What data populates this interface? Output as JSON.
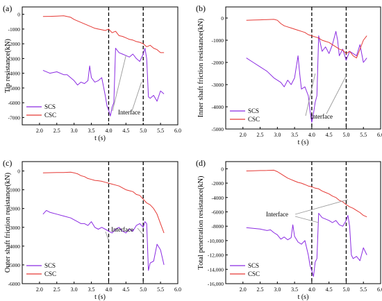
{
  "chart_data": [
    {
      "type": "line",
      "panel_label": "(a)",
      "ylabel": "Tip resistance(kN)",
      "xlabel": "t  (s)",
      "xlim": [
        1.5,
        6.0
      ],
      "ylim": [
        -7500,
        500
      ],
      "xticks": [
        "2.0",
        "2.5",
        "3.0",
        "3.5",
        "4.0",
        "4.5",
        "5.0",
        "5.5",
        "6.0"
      ],
      "yticks": [
        "0",
        "-1000",
        "-2000",
        "-3000",
        "-4000",
        "-5000",
        "-6000",
        "-7000"
      ],
      "xtick_values": [
        2.0,
        2.5,
        3.0,
        3.5,
        4.0,
        4.5,
        5.0,
        5.5,
        6.0
      ],
      "ytick_values": [
        0,
        -1000,
        -2000,
        -3000,
        -4000,
        -5000,
        -6000,
        -7000
      ],
      "vlines": [
        4.0,
        5.0
      ],
      "legend_position": "bottom-left",
      "annotation": "Interface",
      "series": [
        {
          "name": "SCS",
          "color": "#8B2BE2",
          "x": [
            2.1,
            2.3,
            2.5,
            2.7,
            2.8,
            2.9,
            3.0,
            3.1,
            3.2,
            3.3,
            3.4,
            3.45,
            3.5,
            3.6,
            3.7,
            3.8,
            3.9,
            3.95,
            4.0,
            4.05,
            4.1,
            4.15,
            4.2,
            4.3,
            4.4,
            4.5,
            4.6,
            4.7,
            4.8,
            4.9,
            5.0,
            5.05,
            5.1,
            5.15,
            5.2,
            5.3,
            5.4,
            5.5,
            5.6
          ],
          "y": [
            -3800,
            -4000,
            -3900,
            -4100,
            -4100,
            -4300,
            -4500,
            -4800,
            -4600,
            -4700,
            -4500,
            -3500,
            -4300,
            -4600,
            -4500,
            -4300,
            -5500,
            -6200,
            -6500,
            -6900,
            -6300,
            -6000,
            -2300,
            -2600,
            -2700,
            -2800,
            -2900,
            -2700,
            -3000,
            -3200,
            -2700,
            -2300,
            -3000,
            -5600,
            -5700,
            -5500,
            -5900,
            -5200,
            -5400
          ]
        },
        {
          "name": "CSC",
          "color": "#E53935",
          "x": [
            2.1,
            2.3,
            2.5,
            2.7,
            2.9,
            3.0,
            3.1,
            3.2,
            3.3,
            3.4,
            3.5,
            3.6,
            3.7,
            3.8,
            3.9,
            4.0,
            4.1,
            4.2,
            4.3,
            4.4,
            4.5,
            4.6,
            4.7,
            4.8,
            4.9,
            5.0,
            5.1,
            5.2,
            5.3,
            5.4,
            5.5,
            5.6
          ],
          "y": [
            -150,
            -140,
            -120,
            -100,
            -200,
            -350,
            -450,
            -550,
            -650,
            -750,
            -850,
            -950,
            -1000,
            -1050,
            -1100,
            -1000,
            -1250,
            -1150,
            -1450,
            -1500,
            -1600,
            -1700,
            -1750,
            -1850,
            -1900,
            -2000,
            -2200,
            -2100,
            -2300,
            -2400,
            -2600,
            -2600
          ]
        }
      ]
    },
    {
      "type": "line",
      "panel_label": "(b)",
      "ylabel": "Inner shaft friction resistance(kN)",
      "xlabel": "t  (s)",
      "xlim": [
        1.5,
        6.0
      ],
      "ylim": [
        -5000,
        500
      ],
      "xticks": [
        "2.0",
        "2.5",
        "3.0",
        "3.5",
        "4.0",
        "4.5",
        "5.0",
        "5.5",
        "6.0"
      ],
      "yticks": [
        "0",
        "-1000",
        "-2000",
        "-3000",
        "-4000",
        "-5000"
      ],
      "xtick_values": [
        2.0,
        2.5,
        3.0,
        3.5,
        4.0,
        4.5,
        5.0,
        5.5,
        6.0
      ],
      "ytick_values": [
        0,
        -1000,
        -2000,
        -3000,
        -4000,
        -5000
      ],
      "vlines": [
        4.0,
        5.0
      ],
      "legend_position": "bottom-left",
      "annotation": "Interface",
      "series": [
        {
          "name": "SCS",
          "color": "#8B2BE2",
          "x": [
            2.1,
            2.3,
            2.5,
            2.7,
            2.9,
            3.0,
            3.1,
            3.2,
            3.3,
            3.4,
            3.5,
            3.6,
            3.65,
            3.7,
            3.8,
            3.9,
            3.95,
            4.0,
            4.05,
            4.1,
            4.15,
            4.2,
            4.3,
            4.4,
            4.5,
            4.6,
            4.7,
            4.75,
            4.8,
            4.9,
            5.0,
            5.1,
            5.2,
            5.3,
            5.4,
            5.5,
            5.6
          ],
          "y": [
            -1800,
            -2000,
            -2200,
            -2400,
            -2700,
            -2800,
            -2900,
            -3100,
            -2800,
            -3000,
            -2700,
            -1700,
            -2500,
            -3200,
            -3100,
            -3500,
            -4200,
            -4700,
            -4300,
            -3800,
            -3500,
            -800,
            -1500,
            -1300,
            -1600,
            -1200,
            -600,
            -1000,
            -1700,
            -1400,
            -1900,
            -1500,
            -1600,
            -1700,
            -1200,
            -2000,
            -1800
          ]
        },
        {
          "name": "CSC",
          "color": "#E53935",
          "x": [
            2.1,
            2.3,
            2.5,
            2.7,
            2.9,
            3.0,
            3.1,
            3.2,
            3.3,
            3.4,
            3.5,
            3.6,
            3.7,
            3.8,
            3.9,
            4.0,
            4.1,
            4.2,
            4.3,
            4.4,
            4.5,
            4.6,
            4.7,
            4.8,
            4.9,
            5.0,
            5.1,
            5.2,
            5.3,
            5.4,
            5.5,
            5.6
          ],
          "y": [
            -100,
            -90,
            -80,
            -70,
            -60,
            -100,
            -250,
            -350,
            -400,
            -450,
            -500,
            -550,
            -600,
            -650,
            -750,
            -800,
            -850,
            -900,
            -1000,
            -1050,
            -1100,
            -1200,
            -1300,
            -1400,
            -1450,
            -1600,
            -1500,
            -1700,
            -1800,
            -1400,
            -1000,
            -800
          ]
        }
      ]
    },
    {
      "type": "line",
      "panel_label": "(c)",
      "ylabel": "Outer shaft friction resistance(kN)",
      "xlabel": "t  (s)",
      "xlim": [
        1.5,
        6.0
      ],
      "ylim": [
        -6000,
        500
      ],
      "xticks": [
        "2.0",
        "2.5",
        "3.0",
        "3.5",
        "4.0",
        "4.5",
        "5.0",
        "5.5",
        "6.0"
      ],
      "yticks": [
        "0",
        "-1000",
        "-2000",
        "-3000",
        "-4000",
        "-5000",
        "-6000"
      ],
      "xtick_values": [
        2.0,
        2.5,
        3.0,
        3.5,
        4.0,
        4.5,
        5.0,
        5.5,
        6.0
      ],
      "ytick_values": [
        0,
        -1000,
        -2000,
        -3000,
        -4000,
        -5000,
        -6000
      ],
      "vlines": [
        4.0,
        5.0
      ],
      "legend_position": "bottom-left",
      "annotation": "Interface",
      "series": [
        {
          "name": "SCS",
          "color": "#8B2BE2",
          "x": [
            2.1,
            2.2,
            2.3,
            2.5,
            2.7,
            2.9,
            3.0,
            3.1,
            3.2,
            3.3,
            3.4,
            3.5,
            3.6,
            3.7,
            3.8,
            3.9,
            4.0,
            4.1,
            4.2,
            4.3,
            4.4,
            4.5,
            4.6,
            4.7,
            4.8,
            4.9,
            5.0,
            5.05,
            5.1,
            5.15,
            5.2,
            5.3,
            5.4,
            5.5,
            5.6
          ],
          "y": [
            -2300,
            -2100,
            -2200,
            -2300,
            -2400,
            -2500,
            -2600,
            -2700,
            -2800,
            -2800,
            -2900,
            -2700,
            -3000,
            -3100,
            -3000,
            -3100,
            -3200,
            -3300,
            -3100,
            -3000,
            -3200,
            -3300,
            -3100,
            -3200,
            -2900,
            -2800,
            -3000,
            -2700,
            -2800,
            -5300,
            -4900,
            -4800,
            -3900,
            -4200,
            -5000
          ]
        },
        {
          "name": "CSC",
          "color": "#E53935",
          "x": [
            2.1,
            2.3,
            2.5,
            2.7,
            2.9,
            3.0,
            3.1,
            3.2,
            3.3,
            3.4,
            3.5,
            3.6,
            3.7,
            3.8,
            3.9,
            4.0,
            4.1,
            4.2,
            4.3,
            4.4,
            4.5,
            4.6,
            4.7,
            4.8,
            4.9,
            5.0,
            5.1,
            5.2,
            5.3,
            5.4,
            5.5,
            5.6
          ],
          "y": [
            -100,
            -90,
            -80,
            -80,
            -60,
            -100,
            -150,
            -250,
            -300,
            -400,
            -450,
            -500,
            -520,
            -550,
            -600,
            -650,
            -700,
            -750,
            -800,
            -900,
            -1000,
            -1050,
            -1100,
            -1250,
            -1300,
            -1500,
            -1700,
            -1800,
            -2000,
            -2300,
            -2800,
            -3300
          ]
        }
      ]
    },
    {
      "type": "line",
      "panel_label": "(d)",
      "ylabel": "Total penetration resistance(kN)",
      "xlabel": "t  (s)",
      "xlim": [
        1.5,
        6.0
      ],
      "ylim": [
        -16000,
        1000
      ],
      "xticks": [
        "2.0",
        "2.5",
        "3.0",
        "3.5",
        "4.0",
        "4.5",
        "5.0",
        "5.5",
        "6.0"
      ],
      "yticks": [
        "0",
        "-2000",
        "-4000",
        "-6000",
        "-8000",
        "-10,000",
        "-12,000",
        "-14,000",
        "-16,000"
      ],
      "xtick_values": [
        2.0,
        2.5,
        3.0,
        3.5,
        4.0,
        4.5,
        5.0,
        5.5,
        6.0
      ],
      "ytick_values": [
        0,
        -2000,
        -4000,
        -6000,
        -8000,
        -10000,
        -12000,
        -14000,
        -16000
      ],
      "vlines": [
        4.0,
        5.0
      ],
      "legend_position": "bottom-left",
      "annotation": "Interface",
      "series": [
        {
          "name": "SCS",
          "color": "#8B2BE2",
          "x": [
            2.1,
            2.3,
            2.5,
            2.7,
            2.8,
            2.9,
            3.0,
            3.1,
            3.2,
            3.3,
            3.4,
            3.45,
            3.5,
            3.6,
            3.7,
            3.8,
            3.9,
            3.95,
            4.0,
            4.05,
            4.1,
            4.15,
            4.2,
            4.3,
            4.4,
            4.5,
            4.6,
            4.7,
            4.8,
            4.9,
            5.0,
            5.05,
            5.1,
            5.15,
            5.2,
            5.3,
            5.4,
            5.5,
            5.6
          ],
          "y": [
            -8200,
            -8300,
            -8400,
            -8600,
            -8500,
            -8900,
            -9200,
            -9800,
            -9500,
            -9900,
            -9600,
            -7800,
            -9400,
            -10200,
            -10500,
            -10000,
            -12000,
            -13500,
            -14200,
            -15000,
            -13000,
            -12500,
            -6200,
            -6800,
            -7000,
            -7200,
            -7500,
            -7200,
            -7800,
            -8000,
            -7200,
            -6500,
            -8000,
            -12000,
            -12500,
            -12200,
            -12800,
            -11000,
            -12000
          ]
        },
        {
          "name": "CSC",
          "color": "#E53935",
          "x": [
            2.1,
            2.3,
            2.5,
            2.7,
            2.9,
            3.0,
            3.1,
            3.2,
            3.3,
            3.4,
            3.5,
            3.6,
            3.7,
            3.8,
            3.9,
            4.0,
            4.1,
            4.2,
            4.3,
            4.4,
            4.5,
            4.6,
            4.7,
            4.8,
            4.9,
            5.0,
            5.1,
            5.2,
            5.3,
            5.4,
            5.5,
            5.6
          ],
          "y": [
            -300,
            -280,
            -250,
            -240,
            -200,
            -400,
            -700,
            -1000,
            -1300,
            -1500,
            -1700,
            -1900,
            -2000,
            -2200,
            -2400,
            -2500,
            -2700,
            -2800,
            -3100,
            -3300,
            -3500,
            -3800,
            -4000,
            -4400,
            -4600,
            -5000,
            -5300,
            -5500,
            -5800,
            -6100,
            -6500,
            -6700
          ]
        }
      ]
    }
  ]
}
